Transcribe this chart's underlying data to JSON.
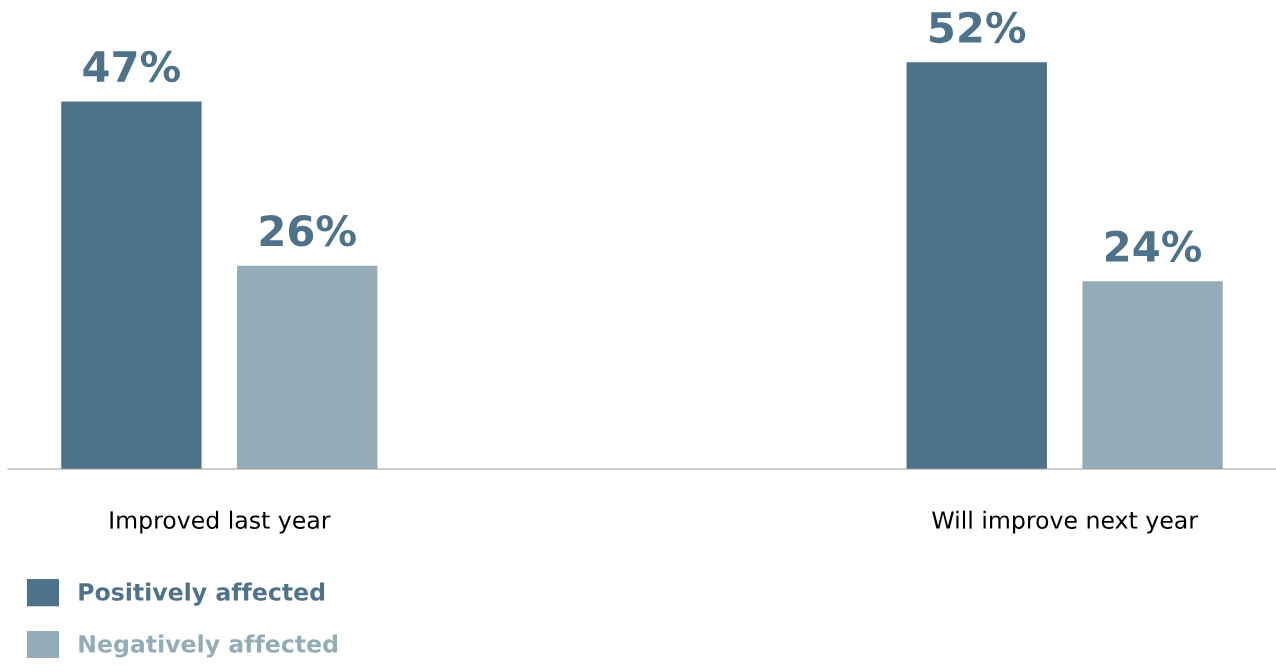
{
  "chart_data": {
    "type": "bar",
    "categories": [
      "Improved last year",
      "Will improve next year"
    ],
    "series": [
      {
        "name": "Positively affected",
        "color": "#4e728a",
        "values": [
          47,
          52
        ],
        "value_labels": [
          "47%",
          "52%"
        ]
      },
      {
        "name": "Negatively affected",
        "color": "#94abb8",
        "values": [
          26,
          24
        ],
        "value_labels": [
          "26%",
          "24%"
        ]
      }
    ],
    "legend": "bottom left",
    "grid": false
  }
}
